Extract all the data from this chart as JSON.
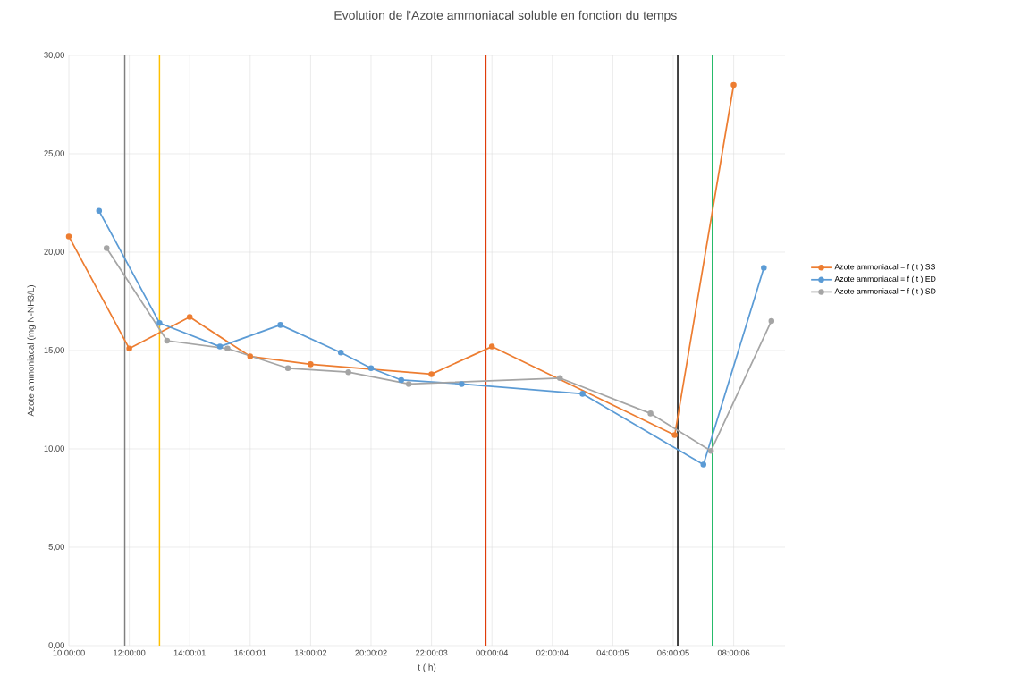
{
  "chart_data": {
    "type": "line",
    "title": "Evolution de l'Azote ammoniacal soluble en fonction du temps",
    "xlabel": "t ( h)",
    "ylabel": "Azote ammoniacal  (mg N-NH3/L)",
    "xlim": [
      "2000-01-01T10:00",
      "2000-01-02T09:42"
    ],
    "ylim": [
      0,
      30
    ],
    "xticks": [
      {
        "value": "2000-01-01T10:00:00",
        "label": "10:00:00"
      },
      {
        "value": "2000-01-01T12:00:00",
        "label": "12:00:00"
      },
      {
        "value": "2000-01-01T14:00:01",
        "label": "14:00:01"
      },
      {
        "value": "2000-01-01T16:00:01",
        "label": "16:00:01"
      },
      {
        "value": "2000-01-01T18:00:02",
        "label": "18:00:02"
      },
      {
        "value": "2000-01-01T20:00:02",
        "label": "20:00:02"
      },
      {
        "value": "2000-01-01T22:00:03",
        "label": "22:00:03"
      },
      {
        "value": "2000-01-02T00:00:04",
        "label": "00:00:04"
      },
      {
        "value": "2000-01-02T02:00:04",
        "label": "02:00:04"
      },
      {
        "value": "2000-01-02T04:00:05",
        "label": "04:00:05"
      },
      {
        "value": "2000-01-02T06:00:05",
        "label": "06:00:05"
      },
      {
        "value": "2000-01-02T08:00:06",
        "label": "08:00:06"
      }
    ],
    "yticks": [
      {
        "value": 0,
        "label": "0,00"
      },
      {
        "value": 5,
        "label": "5,00"
      },
      {
        "value": 10,
        "label": "10,00"
      },
      {
        "value": 15,
        "label": "15,00"
      },
      {
        "value": 20,
        "label": "20,00"
      },
      {
        "value": 25,
        "label": "25,00"
      },
      {
        "value": 30,
        "label": "30,00"
      }
    ],
    "series": [
      {
        "name": "Azote ammoniacal = f ( t ) SS",
        "color": "#ed7d31",
        "x": [
          "2000-01-01T10:00",
          "2000-01-01T12:00",
          "2000-01-01T14:00",
          "2000-01-01T16:00",
          "2000-01-01T18:00",
          "2000-01-01T22:00",
          "2000-01-02T00:00",
          "2000-01-02T06:03",
          "2000-01-02T08:00"
        ],
        "values": [
          20.8,
          15.1,
          16.7,
          14.7,
          14.3,
          13.8,
          15.2,
          10.7,
          28.5
        ]
      },
      {
        "name": "Azote ammoniacal = f ( t ) ED",
        "color": "#5b9bd5",
        "x": [
          "2000-01-01T11:00",
          "2000-01-01T13:00",
          "2000-01-01T15:00",
          "2000-01-01T17:00",
          "2000-01-01T19:00",
          "2000-01-01T20:00",
          "2000-01-01T21:00",
          "2000-01-01T23:00",
          "2000-01-02T03:00",
          "2000-01-02T07:00",
          "2000-01-02T09:00"
        ],
        "values": [
          22.1,
          16.4,
          15.2,
          16.3,
          14.9,
          14.1,
          13.5,
          13.3,
          12.8,
          9.2,
          19.2
        ]
      },
      {
        "name": "Azote ammoniacal = f ( t ) SD",
        "color": "#a5a5a5",
        "x": [
          "2000-01-01T11:15",
          "2000-01-01T13:15",
          "2000-01-01T15:15",
          "2000-01-01T17:15",
          "2000-01-01T19:15",
          "2000-01-01T21:15",
          "2000-01-02T02:15",
          "2000-01-02T05:15",
          "2000-01-02T07:15",
          "2000-01-02T09:15"
        ],
        "values": [
          20.2,
          15.5,
          15.1,
          14.1,
          13.9,
          13.3,
          13.6,
          11.8,
          9.9,
          16.5
        ]
      }
    ],
    "ref_lines": [
      {
        "axis": "x",
        "value": "2000-01-01T11:51",
        "color": "#7f7f7f"
      },
      {
        "axis": "x",
        "value": "2000-01-01T13:00",
        "color": "#ffc000"
      },
      {
        "axis": "x",
        "value": "2000-01-01T23:48",
        "color": "#e03c0a"
      },
      {
        "axis": "x",
        "value": "2000-01-02T06:09",
        "color": "#000000"
      },
      {
        "axis": "x",
        "value": "2000-01-02T07:18",
        "color": "#00b050"
      }
    ],
    "grid": true,
    "legend": "right",
    "marker": "circle",
    "line_style": "solid"
  }
}
